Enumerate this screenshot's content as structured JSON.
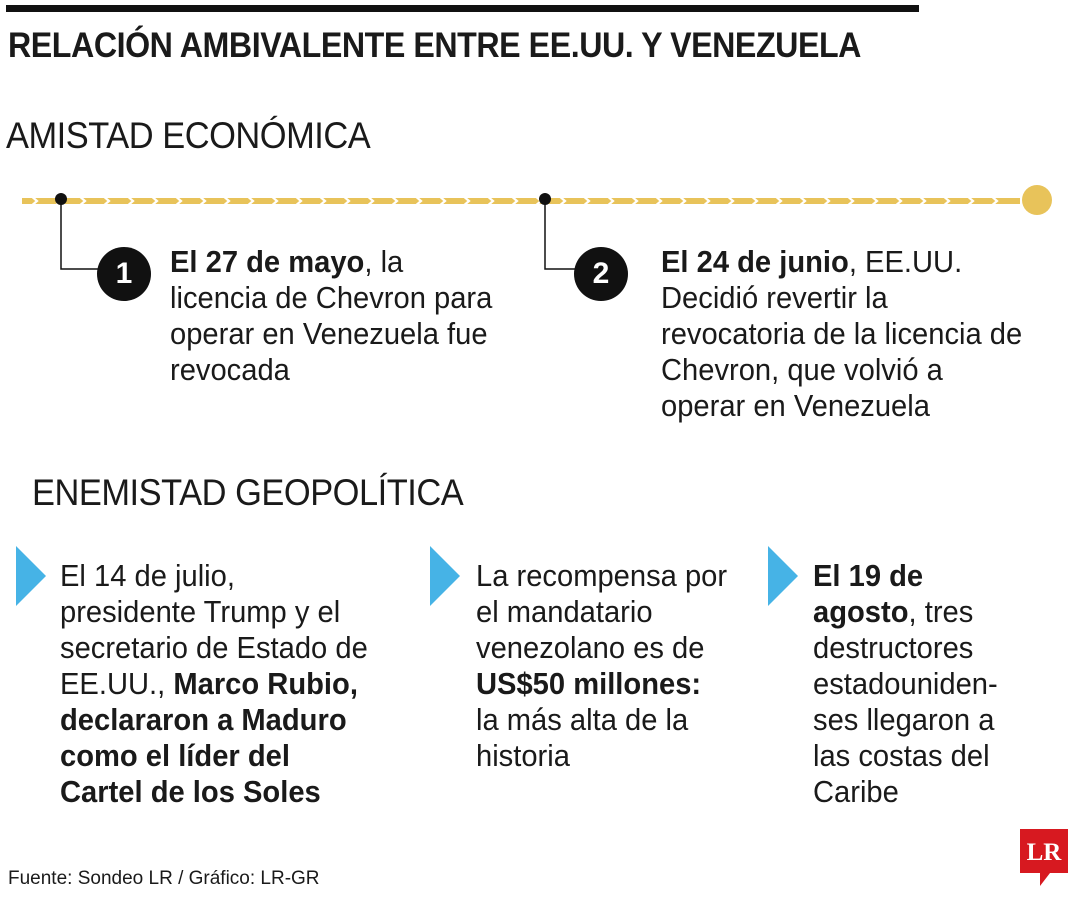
{
  "title": "RELACIÓN AMBIVALENTE ENTRE EE.UU. Y VENEZUELA",
  "sections": {
    "economic": "AMISTAD ECONÓMICA",
    "geopolitical": "ENEMISTAD GEOPOLÍTICA"
  },
  "timeline": {
    "line_color": "#e8c35a",
    "events": [
      {
        "number": "1",
        "bold": "El 27 de mayo",
        "text": ", la licencia de Chevron para operar en Venezuela fue revocada"
      },
      {
        "number": "2",
        "bold": "El 24 de junio",
        "text": ", EE.UU. Decidió revertir la revocatoria de la licencia de Chevron, que volvió a operar en Venezuela"
      }
    ]
  },
  "items": [
    {
      "text_a": "El 14 de julio, presidente Trump y el secretario de Estado de EE.UU., ",
      "bold_a": "Marco Rubio, declararon a Maduro como el líder del Cartel de los Soles"
    },
    {
      "text_a": "La recompensa por el mandatario venezolano es de ",
      "bold_a": "US$50 millones:",
      "text_b": " la más alta de la historia"
    },
    {
      "bold_a": "El 19 de agosto",
      "text_b": ", tres destructores estadouniden-ses llegaron a las costas del Caribe"
    }
  ],
  "source": "Fuente: Sondeo LR / Gráfico: LR-GR",
  "logo": {
    "text": "LR",
    "color": "#d71920"
  },
  "colors": {
    "arrow": "#46b3e6",
    "badge": "#111111"
  }
}
